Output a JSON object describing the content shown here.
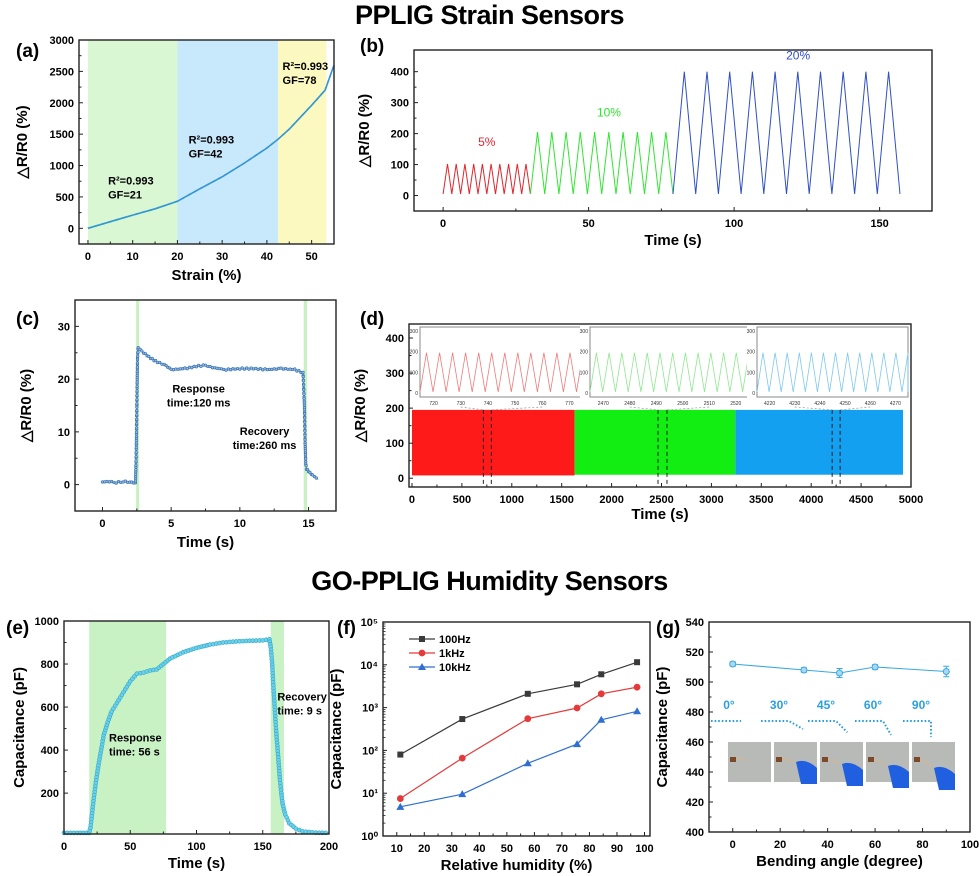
{
  "titles": {
    "strain": "PPLIG Strain Sensors",
    "humidity": "GO-PPLIG Humidity Sensors"
  },
  "chart_data": [
    {
      "id": "a",
      "panel_label": "(a)",
      "type": "line",
      "xlabel": "Strain (%)",
      "ylabel": "△R/R0 (%)",
      "xlim": [
        -2,
        55
      ],
      "ylim": [
        -250,
        3000
      ],
      "xticks": [
        0,
        10,
        20,
        30,
        40,
        50
      ],
      "yticks": [
        0,
        500,
        1000,
        1500,
        2000,
        2500,
        3000
      ],
      "regions": [
        {
          "from": 0,
          "to": 20,
          "color": "#d9f7d2"
        },
        {
          "from": 20,
          "to": 42.5,
          "color": "#c8e8fb"
        },
        {
          "from": 42.5,
          "to": 53.3,
          "color": "#fbf8c0"
        }
      ],
      "series": [
        {
          "name": "measured",
          "color": "#2a9ad8",
          "x": [
            0,
            5,
            10,
            15,
            20,
            25,
            30,
            35,
            40,
            42.5,
            45,
            50,
            53,
            55
          ],
          "y": [
            0,
            105,
            210,
            310,
            430,
            630,
            820,
            1040,
            1280,
            1420,
            1580,
            1960,
            2200,
            2600
          ]
        }
      ],
      "annotations": [
        {
          "text_r2": "R²=0.993",
          "text_gf": "GF=21",
          "x": 4.5,
          "y": 700
        },
        {
          "text_r2": "R²=0.993",
          "text_gf": "GF=42",
          "x": 22.5,
          "y": 1350
        },
        {
          "text_r2": "R²=0.993",
          "text_gf": "GF=78",
          "x": 43.5,
          "y": 2520
        }
      ]
    },
    {
      "id": "b",
      "panel_label": "(b)",
      "type": "line",
      "xlabel": "Time (s)",
      "ylabel": "△R/R0 (%)",
      "xlim": [
        -10,
        168
      ],
      "ylim": [
        -50,
        470
      ],
      "xticks": [
        0,
        50,
        100,
        150
      ],
      "yticks": [
        0,
        100,
        200,
        300,
        400
      ],
      "series": [
        {
          "name": "5%",
          "color": "#e0262d",
          "start": 0,
          "end": 30,
          "cycles": 10,
          "peak": 102
        },
        {
          "name": "10%",
          "color": "#2ee62e",
          "start": 30,
          "end": 79,
          "cycles": 10,
          "peak": 205
        },
        {
          "name": "20%",
          "color": "#2f4fc8",
          "start": 79,
          "end": 157,
          "cycles": 10,
          "peak": 400
        }
      ],
      "labels": [
        {
          "text": "5%",
          "x": 15,
          "y": 160,
          "color": "#e0262d"
        },
        {
          "text": "10%",
          "x": 57,
          "y": 255,
          "color": "#2ee62e"
        },
        {
          "text": "20%",
          "x": 122,
          "y": 440,
          "color": "#2f4fc8"
        }
      ]
    },
    {
      "id": "c",
      "panel_label": "(c)",
      "type": "scatter",
      "xlabel": "Time (s)",
      "ylabel": "△R/R0 (%)",
      "xlim": [
        -2,
        17
      ],
      "ylim": [
        -5,
        35
      ],
      "xticks": [
        0,
        5,
        10,
        15
      ],
      "yticks": [
        0,
        10,
        20,
        30
      ],
      "regions": [
        {
          "from": 2.45,
          "to": 2.6,
          "color": "#c8f0c0"
        },
        {
          "from": 14.65,
          "to": 14.9,
          "color": "#c8f0c0"
        }
      ],
      "series": [
        {
          "name": "response",
          "color": "#2f6fb5",
          "x": [
            0,
            0.5,
            1,
            1.5,
            2,
            2.4,
            2.45,
            2.5,
            2.55,
            2.6,
            3,
            3.5,
            4,
            4.5,
            5,
            6,
            7,
            7.5,
            8,
            9,
            10,
            11,
            12,
            13,
            14,
            14.6,
            14.7,
            14.75,
            14.8,
            14.85,
            15,
            15.3,
            15.7
          ],
          "y": [
            0.5,
            0.6,
            0.4,
            0.6,
            0.5,
            0.3,
            5,
            15,
            24,
            26,
            25,
            24,
            23.2,
            22.8,
            21.8,
            22,
            22.5,
            22.6,
            22.2,
            21.8,
            22,
            22,
            21.8,
            22,
            21.8,
            21.2,
            15,
            8,
            4,
            3,
            2.5,
            1.8,
            1
          ]
        }
      ],
      "annotations": [
        {
          "line1": "Response",
          "line2": "time:120 ms",
          "x": 7,
          "y": 17.5
        },
        {
          "line1": "Recovery",
          "line2": "time:260 ms",
          "x": 11.8,
          "y": 9.4
        }
      ]
    },
    {
      "id": "d",
      "panel_label": "(d)",
      "type": "line",
      "xlabel": "Time (s)",
      "ylabel": "△R/R0 (%)",
      "xlim": [
        -30,
        5000
      ],
      "ylim": [
        -25,
        440
      ],
      "xticks": [
        0,
        500,
        1000,
        1500,
        2000,
        2500,
        3000,
        3500,
        4000,
        4500,
        5000
      ],
      "yticks": [
        0,
        100,
        200,
        300,
        400
      ],
      "bands": [
        {
          "from": 0,
          "to": 1630,
          "low": 8,
          "high": 195,
          "color": "#ff1a1a"
        },
        {
          "from": 1630,
          "to": 3240,
          "low": 10,
          "high": 195,
          "color": "#12ee12"
        },
        {
          "from": 3240,
          "to": 4920,
          "low": 10,
          "high": 195,
          "color": "#14a0f0"
        }
      ],
      "zoom_windows": [
        {
          "from": 715,
          "to": 795
        },
        {
          "from": 2465,
          "to": 2555
        },
        {
          "from": 4210,
          "to": 4290
        }
      ],
      "insets": [
        {
          "color": "#f07a7a",
          "xlim": [
            715,
            775
          ],
          "xticks": [
            720,
            730,
            740,
            750,
            760,
            770
          ],
          "ylim": [
            -20,
            320
          ],
          "yticks": [
            0,
            100,
            200,
            300
          ],
          "cycles": 12.5
        },
        {
          "color": "#8ee88e",
          "xlim": [
            2465,
            2525
          ],
          "xticks": [
            2470,
            2480,
            2490,
            2500,
            2510,
            2520
          ],
          "ylim": [
            -20,
            320
          ],
          "yticks": [
            0,
            100,
            200,
            300
          ],
          "cycles": 12.5
        },
        {
          "color": "#7ec8f0",
          "xlim": [
            4215,
            4275
          ],
          "xticks": [
            4220,
            4230,
            4240,
            4250,
            4260,
            4270
          ],
          "ylim": [
            -20,
            320
          ],
          "yticks": [
            0,
            100,
            200,
            300
          ],
          "cycles": 12.5
        }
      ]
    },
    {
      "id": "e",
      "panel_label": "(e)",
      "type": "scatter",
      "xlabel": "Time (s)",
      "ylabel": "Capacitance (pF)",
      "xlim": [
        0,
        200
      ],
      "ylim": [
        10,
        1000
      ],
      "xticks": [
        0,
        50,
        100,
        150,
        200
      ],
      "yticks": [
        200,
        400,
        600,
        800,
        1000
      ],
      "regions": [
        {
          "from": 19,
          "to": 77,
          "color": "#c8f2c4"
        },
        {
          "from": 156,
          "to": 166,
          "color": "#c8f2c4"
        }
      ],
      "series": [
        {
          "name": "capacitance",
          "color": "#3ab4d8",
          "x": [
            0,
            10,
            19,
            20,
            22,
            24,
            26,
            28,
            30,
            33,
            36,
            40,
            45,
            50,
            55,
            60,
            65,
            70,
            75,
            80,
            90,
            100,
            110,
            120,
            130,
            140,
            150,
            155,
            156,
            157,
            158,
            159,
            160,
            161,
            162,
            163,
            164,
            165,
            167,
            170,
            175,
            180,
            190,
            200
          ],
          "y": [
            15,
            15,
            15,
            40,
            150,
            250,
            330,
            400,
            470,
            530,
            580,
            620,
            670,
            720,
            755,
            760,
            770,
            775,
            800,
            825,
            855,
            875,
            890,
            900,
            905,
            908,
            910,
            915,
            880,
            810,
            700,
            600,
            500,
            420,
            340,
            260,
            200,
            150,
            100,
            60,
            35,
            22,
            16,
            15
          ]
        }
      ],
      "annotations": [
        {
          "line1": "Response",
          "line2": "time: 56 s",
          "x": 34,
          "y": 440
        },
        {
          "line1": "Recovery",
          "line2": "time: 9 s",
          "x": 161,
          "y": 630
        }
      ]
    },
    {
      "id": "f",
      "panel_label": "(f)",
      "type": "line",
      "yscale": "log",
      "xlabel": "Relative humidity (%)",
      "ylabel": "Capacitance (pF)",
      "xlim": [
        5,
        102
      ],
      "ylim": [
        1,
        100000
      ],
      "xticks": [
        10,
        20,
        30,
        40,
        50,
        60,
        70,
        80,
        90,
        100
      ],
      "yticks": [
        1,
        10,
        100,
        1000,
        10000,
        100000
      ],
      "ytick_labels": [
        "10⁰",
        "10¹",
        "10²",
        "10³",
        "10⁴",
        "10⁵"
      ],
      "x": [
        11.3,
        33.8,
        57.6,
        75.5,
        84.3,
        97.3
      ],
      "legend_position": "top-left",
      "series": [
        {
          "name": "100Hz",
          "color": "#3a3a3a",
          "marker": "square",
          "values": [
            80,
            540,
            2100,
            3500,
            6000,
            11500
          ]
        },
        {
          "name": "1kHz",
          "color": "#e33b3b",
          "marker": "circle",
          "values": [
            7.5,
            66,
            550,
            980,
            2100,
            3000
          ]
        },
        {
          "name": "10kHz",
          "color": "#2f6fd0",
          "marker": "triangle",
          "values": [
            4.8,
            9.5,
            50,
            140,
            520,
            820
          ]
        }
      ]
    },
    {
      "id": "g",
      "panel_label": "(g)",
      "type": "line",
      "xlabel": "Bending angle (degree)",
      "ylabel": "Capacitance (pF)",
      "xlim": [
        -10,
        100
      ],
      "ylim": [
        400,
        540
      ],
      "xticks": [
        0,
        20,
        40,
        60,
        80,
        100
      ],
      "yticks": [
        400,
        420,
        440,
        460,
        480,
        500,
        520,
        540
      ],
      "x": [
        0,
        30,
        45,
        60,
        90
      ],
      "series": [
        {
          "name": "capacitance",
          "color": "#3aa8e0",
          "values": [
            512,
            508,
            506,
            510,
            507
          ],
          "errors": [
            1.5,
            1.5,
            3,
            1.5,
            3.5
          ]
        }
      ],
      "angle_labels": [
        "0°",
        "30°",
        "45°",
        "60°",
        "90°"
      ],
      "angle_label_color": "#2aa0e0",
      "photo_captions": [
        "0° bend photo",
        "30° bend photo",
        "45° bend photo",
        "60° bend photo",
        "90° bend photo"
      ]
    }
  ]
}
